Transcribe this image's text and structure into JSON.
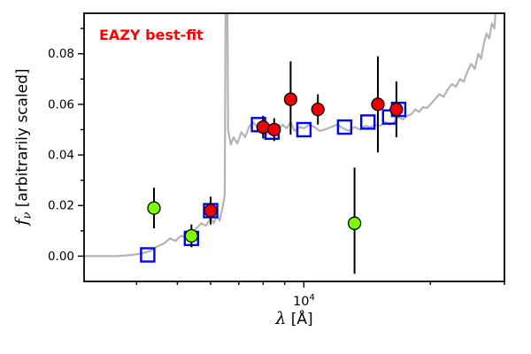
{
  "chart_data": {
    "type": "line",
    "annotation": "EAZY best-fit",
    "xlabel": "λ [Å]",
    "ylabel": "fν [arbitrarily scaled]",
    "xlabel_parts": {
      "symbol": "λ",
      "rest": " [Å]"
    },
    "ylabel_parts": {
      "symbol": "f",
      "sub": "ν",
      "rest": " [arbitrarily scaled]"
    },
    "xscale": "log",
    "xlim": [
      3000,
      30000
    ],
    "ylim": [
      -0.01,
      0.096
    ],
    "yticks": [
      0,
      0.02,
      0.04,
      0.06,
      0.08
    ],
    "ytick_labels": [
      "0.00",
      "0.02",
      "0.04",
      "0.06",
      "0.08"
    ],
    "yticks_minor": [
      0.01,
      0.03,
      0.05,
      0.07,
      0.09
    ],
    "xticks_major": [
      10000
    ],
    "xtick_label": {
      "base": "10",
      "exp": "4"
    },
    "xticks_minor": [
      4000,
      5000,
      6000,
      7000,
      8000,
      9000,
      20000,
      30000
    ],
    "legend": "none",
    "grid": false,
    "colors": {
      "spectrum": "#b3b3b3",
      "model": "#0000ff",
      "red": "#ee0000",
      "green": "#7cfc00",
      "annotation": "#ff0000",
      "errorbar": "#000000",
      "frame": "#000000"
    },
    "spectrum": {
      "name": "eazy-model-spectrum",
      "x": [
        3000,
        3300,
        3600,
        3900,
        4100,
        4300,
        4500,
        4650,
        4800,
        4950,
        5100,
        5250,
        5400,
        5550,
        5700,
        5850,
        6000,
        6100,
        6200,
        6300,
        6400,
        6480,
        6530,
        6560,
        6600,
        6700,
        6800,
        6950,
        7100,
        7250,
        7400,
        7550,
        7700,
        7850,
        8000,
        8150,
        8300,
        8500,
        8700,
        8900,
        9100,
        9300,
        9500,
        9750,
        10000,
        10300,
        10600,
        10900,
        11200,
        11600,
        12000,
        12400,
        12800,
        13200,
        13600,
        14000,
        14400,
        14800,
        15200,
        15600,
        16000,
        16400,
        16800,
        17200,
        17600,
        18000,
        18400,
        18800,
        19200,
        19600,
        20000,
        20500,
        21000,
        21500,
        22000,
        22500,
        23000,
        23500,
        24000,
        24500,
        25000,
        25500,
        26000,
        26400,
        26800,
        27200,
        27600,
        28000,
        28400,
        28800
      ],
      "y": [
        0.0,
        0.0,
        0.0,
        0.0005,
        0.001,
        0.002,
        0.004,
        0.005,
        0.007,
        0.006,
        0.008,
        0.0075,
        0.009,
        0.011,
        0.013,
        0.012,
        0.015,
        0.013,
        0.016,
        0.014,
        0.019,
        0.024,
        0.14,
        0.14,
        0.05,
        0.044,
        0.047,
        0.0445,
        0.049,
        0.047,
        0.051,
        0.053,
        0.0515,
        0.0505,
        0.0495,
        0.048,
        0.05,
        0.0515,
        0.05,
        0.052,
        0.0505,
        0.053,
        0.0495,
        0.051,
        0.0505,
        0.052,
        0.051,
        0.0495,
        0.05,
        0.051,
        0.052,
        0.0505,
        0.0495,
        0.051,
        0.05,
        0.0515,
        0.051,
        0.052,
        0.0515,
        0.053,
        0.052,
        0.053,
        0.055,
        0.054,
        0.0555,
        0.056,
        0.058,
        0.057,
        0.059,
        0.0585,
        0.06,
        0.062,
        0.064,
        0.063,
        0.066,
        0.068,
        0.067,
        0.07,
        0.069,
        0.073,
        0.076,
        0.074,
        0.08,
        0.078,
        0.084,
        0.088,
        0.086,
        0.092,
        0.09,
        0.105
      ]
    },
    "model_photometry": [
      [
        4250,
        0.0005
      ],
      [
        5400,
        0.007
      ],
      [
        6000,
        0.018
      ],
      [
        7800,
        0.052
      ],
      [
        8400,
        0.049
      ],
      [
        10000,
        0.05
      ],
      [
        12500,
        0.051
      ],
      [
        14200,
        0.053
      ],
      [
        16000,
        0.055
      ],
      [
        16800,
        0.058
      ]
    ],
    "observed": [
      {
        "band": "green",
        "x": 4400,
        "y": 0.019,
        "elo": 0.008,
        "ehi": 0.008
      },
      {
        "band": "green",
        "x": 5400,
        "y": 0.008,
        "elo": 0.0045,
        "ehi": 0.0045
      },
      {
        "band": "red",
        "x": 6000,
        "y": 0.018,
        "elo": 0.0055,
        "ehi": 0.0055
      },
      {
        "band": "red",
        "x": 8000,
        "y": 0.051,
        "elo": 0.0045,
        "ehi": 0.0045
      },
      {
        "band": "red",
        "x": 8500,
        "y": 0.05,
        "elo": 0.0045,
        "ehi": 0.0045
      },
      {
        "band": "red",
        "x": 9300,
        "y": 0.062,
        "elo": 0.014,
        "ehi": 0.015
      },
      {
        "band": "red",
        "x": 10800,
        "y": 0.058,
        "elo": 0.006,
        "ehi": 0.006
      },
      {
        "band": "green",
        "x": 13200,
        "y": 0.013,
        "elo": 0.02,
        "ehi": 0.022
      },
      {
        "band": "red",
        "x": 15000,
        "y": 0.06,
        "elo": 0.019,
        "ehi": 0.019
      },
      {
        "band": "red",
        "x": 16600,
        "y": 0.058,
        "elo": 0.011,
        "ehi": 0.011
      }
    ]
  }
}
